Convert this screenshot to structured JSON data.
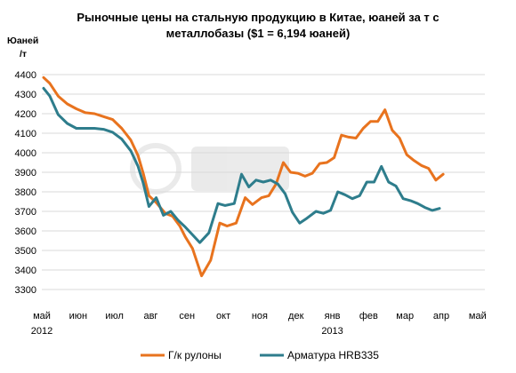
{
  "chart_data": {
    "type": "line",
    "title": [
      "Рыночные цены на стальную продукцию в Китае, юаней за т с",
      "металлобазы ($1 = 6,194 юаней)"
    ],
    "ylabel": [
      "Юаней",
      "/т"
    ],
    "xlabel": "",
    "ylim": [
      3300,
      4400
    ],
    "yticks": [
      3300,
      3400,
      3500,
      3600,
      3700,
      3800,
      3900,
      4000,
      4100,
      4200,
      4300,
      4400
    ],
    "xlim": [
      0,
      12.2
    ],
    "xticks": [
      {
        "label": "май",
        "x": 0,
        "sub": "2012"
      },
      {
        "label": "июн",
        "x": 1
      },
      {
        "label": "июл",
        "x": 2
      },
      {
        "label": "авг",
        "x": 3
      },
      {
        "label": "сен",
        "x": 4
      },
      {
        "label": "окт",
        "x": 5
      },
      {
        "label": "ноя",
        "x": 6
      },
      {
        "label": "дек",
        "x": 7
      },
      {
        "label": "янв",
        "x": 8,
        "sub": "2013"
      },
      {
        "label": "фев",
        "x": 9
      },
      {
        "label": "мар",
        "x": 10
      },
      {
        "label": "апр",
        "x": 11
      },
      {
        "label": "май",
        "x": 12
      }
    ],
    "grid": "horizontal",
    "legend": "bottom",
    "series": [
      {
        "name": "Г/к рулоны",
        "color": "#e8731e",
        "points": [
          [
            0.05,
            4385
          ],
          [
            0.22,
            4355
          ],
          [
            0.45,
            4290
          ],
          [
            0.7,
            4250
          ],
          [
            0.95,
            4225
          ],
          [
            1.2,
            4205
          ],
          [
            1.45,
            4200
          ],
          [
            1.7,
            4185
          ],
          [
            1.95,
            4170
          ],
          [
            2.2,
            4125
          ],
          [
            2.45,
            4065
          ],
          [
            2.65,
            3985
          ],
          [
            2.8,
            3890
          ],
          [
            2.95,
            3780
          ],
          [
            3.15,
            3745
          ],
          [
            3.4,
            3690
          ],
          [
            3.6,
            3675
          ],
          [
            3.8,
            3625
          ],
          [
            3.95,
            3570
          ],
          [
            4.15,
            3510
          ],
          [
            4.4,
            3370
          ],
          [
            4.65,
            3450
          ],
          [
            4.9,
            3640
          ],
          [
            5.1,
            3625
          ],
          [
            5.35,
            3640
          ],
          [
            5.6,
            3770
          ],
          [
            5.8,
            3735
          ],
          [
            6.05,
            3770
          ],
          [
            6.25,
            3780
          ],
          [
            6.45,
            3840
          ],
          [
            6.65,
            3950
          ],
          [
            6.85,
            3900
          ],
          [
            7.05,
            3895
          ],
          [
            7.25,
            3880
          ],
          [
            7.45,
            3895
          ],
          [
            7.65,
            3945
          ],
          [
            7.85,
            3950
          ],
          [
            8.05,
            3975
          ],
          [
            8.25,
            4090
          ],
          [
            8.45,
            4080
          ],
          [
            8.65,
            4075
          ],
          [
            8.85,
            4125
          ],
          [
            9.05,
            4160
          ],
          [
            9.25,
            4160
          ],
          [
            9.45,
            4220
          ],
          [
            9.65,
            4115
          ],
          [
            9.85,
            4075
          ],
          [
            10.05,
            3990
          ],
          [
            10.25,
            3960
          ],
          [
            10.45,
            3935
          ],
          [
            10.65,
            3920
          ],
          [
            10.85,
            3860
          ],
          [
            11.05,
            3890
          ]
        ]
      },
      {
        "name": "Арматура HRB335",
        "color": "#2e7d8c",
        "points": [
          [
            0.05,
            4330
          ],
          [
            0.22,
            4290
          ],
          [
            0.45,
            4195
          ],
          [
            0.7,
            4150
          ],
          [
            0.95,
            4125
          ],
          [
            1.2,
            4125
          ],
          [
            1.45,
            4125
          ],
          [
            1.7,
            4120
          ],
          [
            1.95,
            4105
          ],
          [
            2.2,
            4070
          ],
          [
            2.45,
            4010
          ],
          [
            2.65,
            3930
          ],
          [
            2.8,
            3840
          ],
          [
            2.95,
            3725
          ],
          [
            3.15,
            3770
          ],
          [
            3.35,
            3680
          ],
          [
            3.55,
            3700
          ],
          [
            3.75,
            3655
          ],
          [
            3.95,
            3620
          ],
          [
            4.15,
            3580
          ],
          [
            4.35,
            3540
          ],
          [
            4.6,
            3590
          ],
          [
            4.85,
            3740
          ],
          [
            5.05,
            3730
          ],
          [
            5.3,
            3740
          ],
          [
            5.5,
            3890
          ],
          [
            5.7,
            3825
          ],
          [
            5.9,
            3860
          ],
          [
            6.1,
            3850
          ],
          [
            6.3,
            3860
          ],
          [
            6.5,
            3840
          ],
          [
            6.7,
            3790
          ],
          [
            6.9,
            3695
          ],
          [
            7.1,
            3640
          ],
          [
            7.3,
            3665
          ],
          [
            7.55,
            3700
          ],
          [
            7.75,
            3690
          ],
          [
            7.95,
            3705
          ],
          [
            8.15,
            3800
          ],
          [
            8.35,
            3785
          ],
          [
            8.55,
            3765
          ],
          [
            8.75,
            3780
          ],
          [
            8.95,
            3850
          ],
          [
            9.15,
            3850
          ],
          [
            9.35,
            3930
          ],
          [
            9.55,
            3850
          ],
          [
            9.75,
            3830
          ],
          [
            9.95,
            3765
          ],
          [
            10.15,
            3755
          ],
          [
            10.35,
            3740
          ],
          [
            10.55,
            3720
          ],
          [
            10.75,
            3705
          ],
          [
            10.95,
            3715
          ]
        ]
      }
    ]
  }
}
